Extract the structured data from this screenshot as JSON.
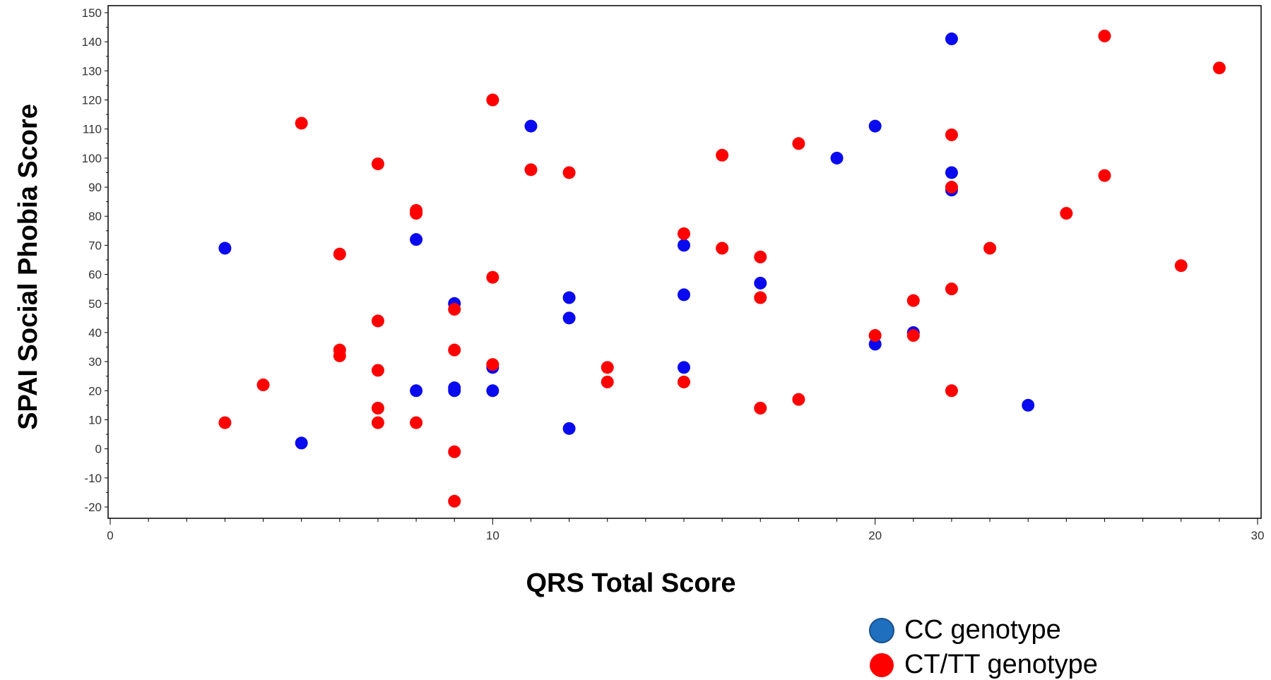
{
  "chart_data": {
    "type": "scatter",
    "xlabel": "QRS Total Score",
    "ylabel": "SPAI Social Phobia Score",
    "xlim": [
      0,
      30
    ],
    "ylim": [
      -20,
      150
    ],
    "xticks": [
      0,
      10,
      20,
      30
    ],
    "yticks": [
      -20,
      -10,
      0,
      10,
      20,
      30,
      40,
      50,
      60,
      70,
      80,
      90,
      100,
      110,
      120,
      130,
      140,
      150
    ],
    "grid": false,
    "legend_position": "bottom-right",
    "series": [
      {
        "name": "CC genotype",
        "legend_color": "#1f6fbf",
        "color": "#0a0aee",
        "points": [
          [
            3,
            69
          ],
          [
            5,
            2
          ],
          [
            8,
            72
          ],
          [
            8,
            20
          ],
          [
            9,
            50
          ],
          [
            9,
            21
          ],
          [
            9,
            20
          ],
          [
            10,
            28
          ],
          [
            10,
            20
          ],
          [
            11,
            111
          ],
          [
            12,
            52
          ],
          [
            12,
            45
          ],
          [
            12,
            7
          ],
          [
            15,
            70
          ],
          [
            15,
            53
          ],
          [
            15,
            28
          ],
          [
            17,
            57
          ],
          [
            19,
            100
          ],
          [
            20,
            111
          ],
          [
            20,
            36
          ],
          [
            21,
            40
          ],
          [
            22,
            141
          ],
          [
            22,
            95
          ],
          [
            22,
            89
          ],
          [
            24,
            15
          ]
        ]
      },
      {
        "name": "CT/TT genotype",
        "legend_color": "#ff0000",
        "color": "#ff0000",
        "points": [
          [
            3,
            9
          ],
          [
            4,
            22
          ],
          [
            5,
            112
          ],
          [
            6,
            67
          ],
          [
            6,
            34
          ],
          [
            6,
            32
          ],
          [
            7,
            98
          ],
          [
            7,
            44
          ],
          [
            7,
            27
          ],
          [
            7,
            14
          ],
          [
            7,
            9
          ],
          [
            8,
            82
          ],
          [
            8,
            81
          ],
          [
            8,
            9
          ],
          [
            9,
            48
          ],
          [
            9,
            34
          ],
          [
            9,
            -1
          ],
          [
            9,
            -18
          ],
          [
            10,
            120
          ],
          [
            10,
            59
          ],
          [
            10,
            29
          ],
          [
            11,
            96
          ],
          [
            12,
            95
          ],
          [
            13,
            28
          ],
          [
            13,
            23
          ],
          [
            15,
            74
          ],
          [
            15,
            23
          ],
          [
            16,
            101
          ],
          [
            16,
            69
          ],
          [
            17,
            66
          ],
          [
            17,
            52
          ],
          [
            17,
            14
          ],
          [
            18,
            105
          ],
          [
            18,
            17
          ],
          [
            20,
            39
          ],
          [
            21,
            51
          ],
          [
            21,
            39
          ],
          [
            22,
            108
          ],
          [
            22,
            90
          ],
          [
            22,
            55
          ],
          [
            22,
            20
          ],
          [
            23,
            69
          ],
          [
            25,
            81
          ],
          [
            26,
            142
          ],
          [
            26,
            94
          ],
          [
            28,
            63
          ],
          [
            29,
            131
          ]
        ]
      }
    ]
  }
}
